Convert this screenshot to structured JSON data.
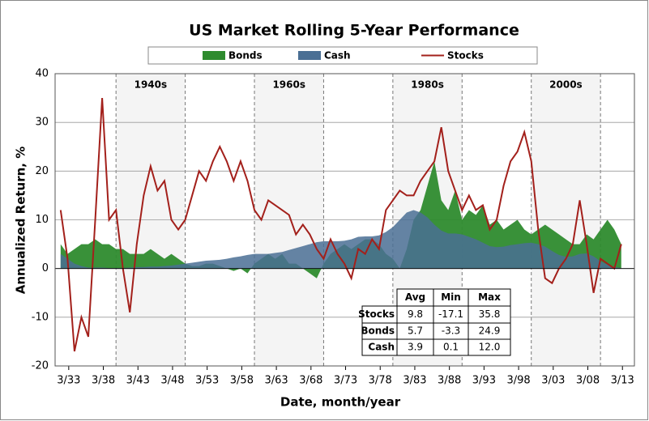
{
  "chart_data": {
    "type": "line",
    "title": "US Market Rolling 5-Year Performance",
    "x_label": "Date, month/year",
    "y_label": "Annualized Return, %",
    "xlim": [
      1931.2,
      2014.9
    ],
    "ylim": [
      -20,
      40
    ],
    "yticks": [
      -20,
      -10,
      0,
      10,
      20,
      30,
      40
    ],
    "xticks": [
      {
        "value": 1933.17,
        "label": "3/33"
      },
      {
        "value": 1938.17,
        "label": "3/38"
      },
      {
        "value": 1943.17,
        "label": "3/43"
      },
      {
        "value": 1948.17,
        "label": "3/48"
      },
      {
        "value": 1953.17,
        "label": "3/53"
      },
      {
        "value": 1958.17,
        "label": "3/58"
      },
      {
        "value": 1963.17,
        "label": "3/63"
      },
      {
        "value": 1968.17,
        "label": "3/68"
      },
      {
        "value": 1973.17,
        "label": "3/73"
      },
      {
        "value": 1978.17,
        "label": "3/78"
      },
      {
        "value": 1983.17,
        "label": "3/83"
      },
      {
        "value": 1988.17,
        "label": "3/88"
      },
      {
        "value": 1993.17,
        "label": "3/93"
      },
      {
        "value": 1998.17,
        "label": "3/98"
      },
      {
        "value": 2003.17,
        "label": "3/03"
      },
      {
        "value": 2008.17,
        "label": "3/08"
      },
      {
        "value": 2013.17,
        "label": "3/13"
      }
    ],
    "grid": true,
    "legend": "top",
    "decades": [
      {
        "label": "1940s",
        "start": 1940,
        "end": 1950
      },
      {
        "label": "1960s",
        "start": 1960,
        "end": 1970
      },
      {
        "label": "1980s",
        "start": 1980,
        "end": 1990
      },
      {
        "label": "2000s",
        "start": 2000,
        "end": 2010
      }
    ],
    "x": [
      1932,
      1933,
      1934,
      1935,
      1936,
      1937,
      1938,
      1939,
      1940,
      1941,
      1942,
      1943,
      1944,
      1945,
      1946,
      1947,
      1948,
      1949,
      1950,
      1951,
      1952,
      1953,
      1954,
      1955,
      1956,
      1957,
      1958,
      1959,
      1960,
      1961,
      1962,
      1963,
      1964,
      1965,
      1966,
      1967,
      1968,
      1969,
      1970,
      1971,
      1972,
      1973,
      1974,
      1975,
      1976,
      1977,
      1978,
      1979,
      1980,
      1981,
      1982,
      1983,
      1984,
      1985,
      1986,
      1987,
      1988,
      1989,
      1990,
      1991,
      1992,
      1993,
      1994,
      1995,
      1996,
      1997,
      1998,
      1999,
      2000,
      2001,
      2002,
      2003,
      2004,
      2005,
      2006,
      2007,
      2008,
      2009,
      2010,
      2011,
      2012,
      2013
    ],
    "series": [
      {
        "name": "Bonds",
        "kind": "area",
        "color": "#2e8b2e",
        "values": [
          5,
          3,
          4,
          5,
          5,
          6,
          5,
          5,
          4,
          4,
          3,
          3,
          3,
          4,
          3,
          2,
          3,
          2,
          1,
          0.5,
          0.5,
          1,
          1,
          0.5,
          0,
          -0.5,
          0,
          -1,
          1,
          2,
          3,
          2,
          3,
          1,
          1,
          0,
          -1,
          -2,
          1,
          3,
          4,
          5,
          4,
          5,
          6,
          6,
          5,
          3,
          2,
          0,
          4,
          10,
          12,
          17,
          22,
          14,
          12,
          16,
          10,
          12,
          11,
          13,
          9,
          10,
          8,
          9,
          10,
          8,
          7,
          8,
          9,
          8,
          7,
          6,
          5,
          5,
          7,
          6,
          8,
          10,
          8,
          5
        ]
      },
      {
        "name": "Cash",
        "kind": "area",
        "color": "#4a6f94",
        "values": [
          3,
          2,
          1,
          0.5,
          0.2,
          0.2,
          0.2,
          0.1,
          0.1,
          0.1,
          0.2,
          0.3,
          0.3,
          0.4,
          0.4,
          0.5,
          0.6,
          0.8,
          1.0,
          1.2,
          1.4,
          1.6,
          1.7,
          1.8,
          2.0,
          2.3,
          2.5,
          2.8,
          3.0,
          3.0,
          3.0,
          3.2,
          3.4,
          3.8,
          4.2,
          4.6,
          5.0,
          5.4,
          5.6,
          5.6,
          5.6,
          5.7,
          6.0,
          6.5,
          6.6,
          6.6,
          6.8,
          7.5,
          8.5,
          10,
          11.5,
          12,
          11.5,
          10.5,
          9,
          7.8,
          7.2,
          7.2,
          7.0,
          6.5,
          6.0,
          5.3,
          4.6,
          4.4,
          4.5,
          4.8,
          5.0,
          5.2,
          5.3,
          5.0,
          4.5,
          3.6,
          2.8,
          2.4,
          2.5,
          3.0,
          3.1,
          2.5,
          1.5,
          0.8,
          0.3,
          0.1
        ]
      },
      {
        "name": "Stocks",
        "kind": "line",
        "color": "#a3201b",
        "values": [
          12,
          2,
          -17,
          -10,
          -14,
          10,
          35,
          10,
          12,
          0,
          -9,
          5,
          15,
          21,
          16,
          18,
          10,
          8,
          10,
          15,
          20,
          18,
          22,
          25,
          22,
          18,
          22,
          18,
          12,
          10,
          14,
          13,
          12,
          11,
          7,
          9,
          7,
          4,
          2,
          6,
          3,
          1,
          -2,
          4,
          3,
          6,
          4,
          12,
          14,
          16,
          15,
          15,
          18,
          20,
          22,
          29,
          20,
          16,
          12,
          15,
          12,
          13,
          8,
          10,
          17,
          22,
          24,
          28,
          22,
          8,
          -2,
          -3,
          0,
          2,
          5,
          14,
          5,
          -5,
          2,
          1,
          0,
          5
        ]
      }
    ],
    "stats_table": {
      "columns": [
        "Avg",
        "Min",
        "Max"
      ],
      "rows": [
        {
          "label": "Stocks",
          "values": [
            "9.8",
            "-17.1",
            "35.8"
          ]
        },
        {
          "label": "Bonds",
          "values": [
            "5.7",
            "-3.3",
            "24.9"
          ]
        },
        {
          "label": "Cash",
          "values": [
            "3.9",
            "0.1",
            "12.0"
          ]
        }
      ]
    }
  }
}
